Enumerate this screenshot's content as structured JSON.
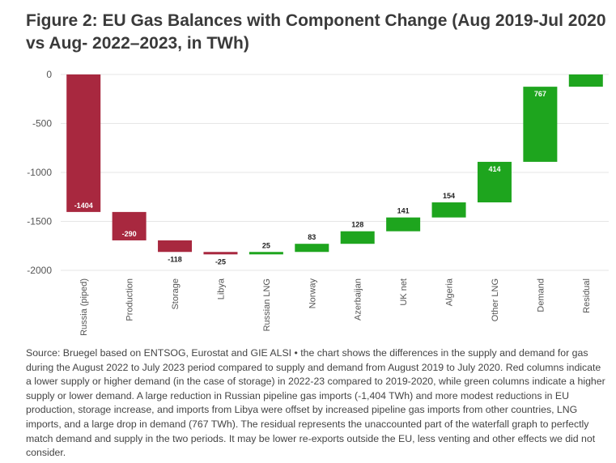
{
  "title": "Figure 2: EU Gas Balances with Component Change (Aug 2019-Jul 2020 vs Aug- 2022–2023, in TWh)",
  "footer": "Source: Bruegel based on ENTSOG, Eurostat and GIE ALSI • the chart shows the differences in the supply and demand for gas during the August 2022 to July 2023 period compared to supply and demand from August 2019 to July 2020. Red columns indicate a lower supply or higher demand (in the case of storage) in 2022-23 compared to 2019-2020, while green columns indicate a higher supply or lower demand. A large reduction in Russian pipeline gas imports (-1,404 TWh) and more modest reductions in EU production, storage increase, and imports from Libya were offset by increased pipeline gas imports from other countries, LNG imports, and a large drop in demand (767 TWh). The residual represents the unaccounted part of the waterfall graph to perfectly match demand and supply in the two periods. It may be lower re-exports outside the EU, less venting and other effects we did not consider.",
  "colors": {
    "negative": "#a8283f",
    "positive": "#1ea51e",
    "grid": "#e6e6e6",
    "axis": "#cccccc"
  },
  "chart_data": {
    "type": "waterfall",
    "title": "Figure 2: EU Gas Balances with Component Change (Aug 2019-Jul 2020 vs Aug- 2022–2023, in TWh)",
    "ylim": [
      -2000,
      0
    ],
    "yticks": [
      0,
      -500,
      -1000,
      -1500,
      -2000
    ],
    "grid": true,
    "categories": [
      "Russia (piped)",
      "Production",
      "Storage",
      "Libya",
      "Russian LNG",
      "Norway",
      "Azerbaijan",
      "UK net",
      "Algeria",
      "Other LNG",
      "Demand",
      "Residual"
    ],
    "values": [
      -1404,
      -290,
      -118,
      -25,
      25,
      83,
      128,
      141,
      154,
      414,
      767,
      null
    ],
    "labels": [
      "-1404",
      "-290",
      "-118",
      "-25",
      "25",
      "83",
      "128",
      "141",
      "154",
      "414",
      "767",
      ""
    ],
    "bars": [
      {
        "start": 0,
        "end": -1404
      },
      {
        "start": -1404,
        "end": -1694
      },
      {
        "start": -1694,
        "end": -1812
      },
      {
        "start": -1812,
        "end": -1837
      },
      {
        "start": -1837,
        "end": -1812
      },
      {
        "start": -1812,
        "end": -1729
      },
      {
        "start": -1729,
        "end": -1601
      },
      {
        "start": -1601,
        "end": -1460
      },
      {
        "start": -1460,
        "end": -1306
      },
      {
        "start": -1306,
        "end": -892
      },
      {
        "start": -892,
        "end": -125
      },
      {
        "start": -125,
        "end": 0
      }
    ]
  }
}
